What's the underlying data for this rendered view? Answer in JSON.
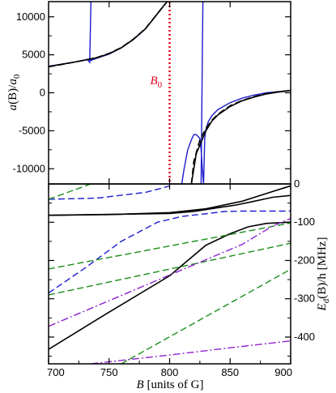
{
  "chart_data": [
    {
      "type": "line",
      "panel": "top",
      "xlim": [
        700,
        900
      ],
      "ylim": [
        -12000,
        12000
      ],
      "yticks": [
        -10000,
        -5000,
        0,
        5000,
        10000
      ],
      "ylabel": {
        "a": "a",
        "arg": "(B)/",
        "b": "a",
        "sub": "0"
      },
      "annotation": {
        "text": "B",
        "sub": "0",
        "x": 800,
        "color": "#e8001c"
      },
      "series": [
        {
          "style": "solid",
          "color": "#1c1ccf",
          "segments": [
            {
              "x": [
                700,
                710,
                720,
                728,
                732,
                734,
                735
              ],
              "y": [
                3500,
                3750,
                4000,
                4250,
                4400,
                4000,
                12000
              ]
            },
            {
              "x": [
                734.5,
                735,
                737,
                740,
                750,
                760,
                770,
                780,
                790,
                795,
                798
              ],
              "y": [
                4400,
                4250,
                4400,
                4550,
                5100,
                5900,
                7000,
                8400,
                10400,
                11400,
                12000
              ]
            },
            {
              "x": [
                810,
                812,
                815,
                818,
                820,
                822,
                825,
                826,
                827,
                828
              ],
              "y": [
                -12000,
                -10000,
                -7500,
                -6200,
                -5500,
                -5500,
                -6000,
                -7500,
                -10000,
                -12000
              ]
            },
            {
              "x": [
                826,
                827,
                827.5
              ],
              "y": [
                -12000,
                5000,
                12000
              ]
            },
            {
              "x": [
                828,
                829,
                830,
                832,
                835,
                840,
                850,
                860,
                870,
                880,
                890,
                900
              ],
              "y": [
                -12000,
                -6000,
                -4800,
                -3800,
                -3000,
                -2200,
                -1300,
                -700,
                -300,
                0,
                150,
                300
              ]
            }
          ]
        },
        {
          "style": "dashed",
          "color": "#000000",
          "segments": [
            {
              "x": [
                700,
                710,
                720,
                730,
                740,
                750,
                760,
                770,
                780,
                790,
                795,
                798
              ],
              "y": [
                3400,
                3700,
                4000,
                4300,
                4650,
                5200,
                5950,
                7050,
                8450,
                10450,
                11450,
                12000
              ]
            },
            {
              "x": [
                818,
                820,
                825,
                830,
                835,
                840,
                850,
                860,
                870,
                880,
                890,
                900
              ],
              "y": [
                -12000,
                -9000,
                -6200,
                -4700,
                -3600,
                -2800,
                -1700,
                -1000,
                -500,
                -100,
                150,
                300
              ]
            }
          ]
        },
        {
          "style": "solid",
          "color": "#000000",
          "segments": [
            {
              "x": [
                700,
                710,
                720,
                730,
                740,
                750,
                760,
                770,
                780,
                790,
                795,
                798
              ],
              "y": [
                3450,
                3720,
                4000,
                4300,
                4620,
                5150,
                5920,
                7020,
                8420,
                10420,
                11420,
                12000
              ]
            },
            {
              "x": [
                818,
                819,
                822,
                826,
                830,
                835,
                840,
                850,
                860,
                870,
                880,
                890,
                900
              ],
              "y": [
                -12000,
                -11000,
                -8000,
                -6500,
                -5000,
                -3700,
                -2900,
                -1800,
                -1050,
                -550,
                -150,
                100,
                300
              ]
            }
          ]
        }
      ]
    },
    {
      "type": "line",
      "panel": "bottom",
      "xlim": [
        700,
        900
      ],
      "ylim": [
        -470,
        0
      ],
      "xticks": [
        700,
        750,
        800,
        850,
        900
      ],
      "yticks": [
        0,
        -100,
        -200,
        -300,
        -400
      ],
      "xlabel": {
        "b": "B",
        "rest": " [units of G]"
      },
      "ylabel": {
        "e": "E",
        "sub": "d",
        "rest": "(B)/h [MHz]"
      },
      "series": [
        {
          "style": "solid",
          "color": "#000000",
          "x": [
            700,
            750,
            800,
            830,
            860,
            880,
            895,
            900
          ],
          "y": [
            -82,
            -80,
            -75,
            -65,
            -45,
            -25,
            -10,
            -5
          ]
        },
        {
          "style": "solid",
          "color": "#000000",
          "x": [
            700,
            800,
            820,
            840,
            855,
            870,
            885,
            900
          ],
          "y": [
            -82,
            -77,
            -72,
            -62,
            -55,
            -45,
            -35,
            -30
          ]
        },
        {
          "style": "solid",
          "color": "#000000",
          "x": [
            700,
            750,
            800,
            830,
            850,
            865,
            880,
            900
          ],
          "y": [
            -432,
            -335,
            -240,
            -160,
            -130,
            -112,
            -103,
            -100
          ]
        },
        {
          "style": "dashed",
          "color": "#1c1ccf",
          "x": [
            700,
            740,
            780,
            790,
            800
          ],
          "y": [
            -40,
            -37,
            -22,
            -14,
            -5
          ]
        },
        {
          "style": "dashed",
          "color": "#1c1ccf",
          "x": [
            700,
            730,
            760,
            790,
            810,
            830,
            845,
            860,
            900
          ],
          "y": [
            -285,
            -220,
            -150,
            -100,
            -85,
            -78,
            -72,
            -71,
            -71
          ]
        },
        {
          "style": "dashed",
          "color": "#1a8f1a",
          "x": [
            700,
            735
          ],
          "y": [
            -40,
            0
          ]
        },
        {
          "style": "dashed",
          "color": "#1a8f1a",
          "x": [
            700,
            900
          ],
          "y": [
            -222,
            -102
          ]
        },
        {
          "style": "dashed",
          "color": "#1a8f1a",
          "x": [
            700,
            900
          ],
          "y": [
            -290,
            -155
          ]
        },
        {
          "style": "dashed",
          "color": "#1a8f1a",
          "x": [
            760,
            900
          ],
          "y": [
            -470,
            -223
          ]
        },
        {
          "style": "dashdot",
          "color": "#8f23cf",
          "x": [
            700,
            800,
            860,
            885,
            900
          ],
          "y": [
            -372,
            -238,
            -158,
            -110,
            -90
          ]
        },
        {
          "style": "dashdot",
          "color": "#8f23cf",
          "x": [
            735,
            800,
            850,
            900
          ],
          "y": [
            -470,
            -447,
            -428,
            -410
          ]
        }
      ]
    }
  ]
}
